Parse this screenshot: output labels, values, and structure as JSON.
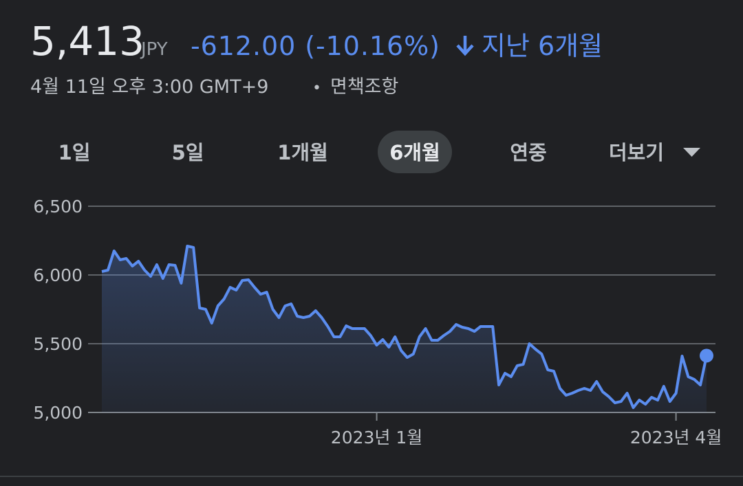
{
  "header": {
    "price": "5,413",
    "currency": "JPY",
    "change": "-612.00 (-10.16%)",
    "period": "지난 6개월",
    "timestamp": "4월 11일 오후 3:00 GMT+9",
    "separator": "•",
    "disclaimer": "면책조항"
  },
  "tabs": [
    "1일",
    "5일",
    "1개월",
    "6개월",
    "연중",
    "더보기"
  ],
  "selected_tab": 3,
  "chart_data": {
    "type": "line",
    "categories": [
      null,
      null,
      null,
      null,
      null,
      null,
      null,
      null,
      null,
      null,
      null,
      null,
      null,
      null,
      null,
      null,
      null,
      null,
      null,
      null,
      null,
      null,
      null,
      null,
      null,
      null,
      null,
      null,
      null,
      null,
      null,
      null,
      null,
      null,
      null,
      null,
      null,
      null,
      null,
      null,
      null,
      null,
      null,
      null,
      null,
      "2023년 1월",
      null,
      null,
      null,
      null,
      null,
      null,
      null,
      null,
      null,
      null,
      null,
      null,
      null,
      null,
      null,
      null,
      null,
      null,
      null,
      null,
      null,
      null,
      null,
      null,
      null,
      null,
      null,
      null,
      null,
      null,
      null,
      null,
      null,
      null,
      null,
      null,
      null,
      null,
      null,
      null,
      null,
      null,
      null,
      null,
      null,
      null,
      null,
      null,
      "2023년 4월",
      null,
      null,
      null,
      null,
      null
    ],
    "values": [
      6025,
      6035,
      6175,
      6110,
      6120,
      6065,
      6100,
      6035,
      5990,
      6075,
      5975,
      6075,
      6070,
      5940,
      6210,
      6200,
      5760,
      5750,
      5650,
      5775,
      5825,
      5910,
      5890,
      5960,
      5965,
      5910,
      5860,
      5875,
      5750,
      5690,
      5775,
      5790,
      5700,
      5690,
      5700,
      5740,
      5690,
      5625,
      5550,
      5550,
      5630,
      5610,
      5610,
      5610,
      5560,
      5490,
      5530,
      5475,
      5550,
      5450,
      5400,
      5425,
      5550,
      5610,
      5525,
      5525,
      5560,
      5590,
      5640,
      5620,
      5610,
      5590,
      5625,
      5625,
      5625,
      5200,
      5285,
      5260,
      5340,
      5350,
      5500,
      5460,
      5425,
      5310,
      5300,
      5175,
      5125,
      5140,
      5160,
      5175,
      5160,
      5225,
      5150,
      5115,
      5070,
      5080,
      5140,
      5035,
      5090,
      5060,
      5110,
      5090,
      5190,
      5080,
      5140,
      5410,
      5260,
      5240,
      5200,
      5413
    ],
    "color": "#5b8def",
    "ylim": [
      5000,
      6500
    ],
    "yticks": [
      {
        "value": 5000,
        "label": "5,000"
      },
      {
        "value": 5500,
        "label": "5,500"
      },
      {
        "value": 6000,
        "label": "6,000"
      },
      {
        "value": 6500,
        "label": "6,500"
      }
    ],
    "grid": true
  }
}
